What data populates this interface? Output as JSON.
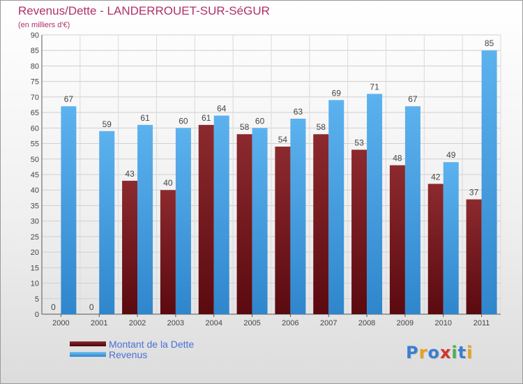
{
  "chart_data": {
    "type": "bar",
    "title": "Revenus/Dette - LANDERROUET-SUR-SéGUR",
    "subtitle": "(en milliers d'€)",
    "categories": [
      "2000",
      "2001",
      "2002",
      "2003",
      "2004",
      "2005",
      "2006",
      "2007",
      "2008",
      "2009",
      "2010",
      "2011"
    ],
    "series": [
      {
        "name": "Montant de la Dette",
        "values": [
          0,
          0,
          43,
          40,
          61,
          58,
          54,
          58,
          53,
          48,
          42,
          37
        ],
        "color": "#7a1e22"
      },
      {
        "name": "Revenus",
        "values": [
          67,
          59,
          61,
          60,
          64,
          60,
          63,
          69,
          71,
          67,
          49,
          85
        ],
        "color": "#4aa3e3"
      }
    ],
    "ylim": [
      0,
      90
    ],
    "yticks": [
      0,
      5,
      10,
      15,
      20,
      25,
      30,
      35,
      40,
      45,
      50,
      55,
      60,
      65,
      70,
      75,
      80,
      85,
      90
    ],
    "grid": true,
    "legend": "bottom-left"
  },
  "logo": {
    "text": "Proxiti",
    "colors": [
      "#3a7fd0",
      "#e8a020",
      "#3a7fd0",
      "#d0342c",
      "#4caf50",
      "#3a7fd0",
      "#e8a020"
    ]
  }
}
